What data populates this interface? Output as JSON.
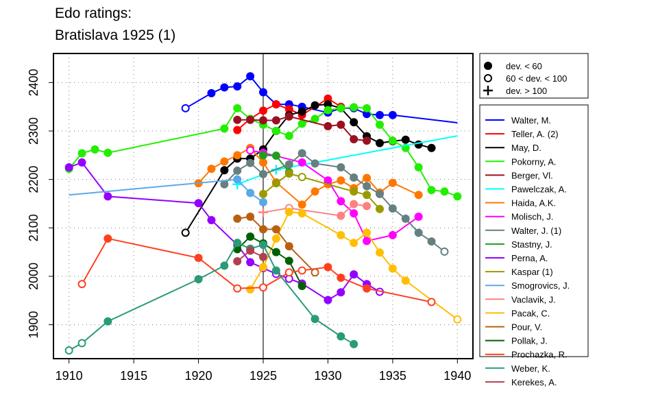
{
  "chart_data": {
    "type": "line",
    "title": [
      "Edo ratings:",
      "Bratislava 1925 (1)"
    ],
    "xlabel": "",
    "ylabel": "",
    "xlim": [
      1908.8,
      1941.2
    ],
    "ylim": [
      1830,
      2460
    ],
    "xticks": [
      1910,
      1915,
      1920,
      1925,
      1930,
      1935,
      1940
    ],
    "yticks": [
      1900,
      2000,
      2100,
      2200,
      2300,
      2400
    ],
    "reference_year": 1925,
    "grid": true,
    "marker_legend": [
      {
        "label": "dev. < 60",
        "marker": "filled"
      },
      {
        "label": "60 < dev. < 100",
        "marker": "open"
      },
      {
        "label": "dev. > 100",
        "marker": "plus"
      }
    ],
    "legend_placement": "right",
    "series": [
      {
        "name": "Walter, M.",
        "color": "#0000ff",
        "points": [
          [
            1919,
            2347,
            "o"
          ],
          [
            1921,
            2378,
            "f"
          ],
          [
            1922,
            2390,
            "f"
          ],
          [
            1923,
            2392,
            "f"
          ],
          [
            1924,
            2413,
            "f"
          ],
          [
            1925,
            2380,
            "f"
          ],
          [
            1926,
            2355,
            "f"
          ],
          [
            1927,
            2355,
            "f"
          ],
          [
            1928,
            2350,
            "f"
          ],
          [
            1930,
            2338,
            "f"
          ],
          [
            1931,
            2347,
            "f"
          ],
          [
            1932,
            2347,
            "f"
          ],
          [
            1933,
            2335,
            "f"
          ],
          [
            1934,
            2333,
            "f"
          ],
          [
            1935,
            2333,
            "f"
          ],
          [
            1940,
            2317,
            "n"
          ]
        ]
      },
      {
        "name": "Teller, A. (2)",
        "color": "#ff0000",
        "points": [
          [
            1923,
            2302,
            "f"
          ],
          [
            1924,
            2325,
            "f"
          ],
          [
            1925,
            2342,
            "f"
          ],
          [
            1926,
            2355,
            "f"
          ],
          [
            1927,
            2345,
            "f"
          ],
          [
            1928,
            2333,
            "f"
          ],
          [
            1930,
            2367,
            "f"
          ],
          [
            1931,
            2350,
            "f"
          ]
        ]
      },
      {
        "name": "May, D.",
        "color": "#000000",
        "points": [
          [
            1919,
            2090,
            "o"
          ],
          [
            1922,
            2219,
            "f"
          ],
          [
            1923,
            2243,
            "f"
          ],
          [
            1924,
            2243,
            "f"
          ],
          [
            1925,
            2262,
            "f"
          ],
          [
            1926,
            2300,
            "f"
          ],
          [
            1927,
            2333,
            "f"
          ],
          [
            1928,
            2340,
            "f"
          ],
          [
            1929,
            2353,
            "f"
          ],
          [
            1930,
            2355,
            "f"
          ],
          [
            1931,
            2347,
            "f"
          ],
          [
            1932,
            2318,
            "f"
          ],
          [
            1933,
            2289,
            "f"
          ],
          [
            1934,
            2275,
            "f"
          ],
          [
            1935,
            2279,
            "f"
          ],
          [
            1936,
            2282,
            "f"
          ],
          [
            1937,
            2272,
            "f"
          ],
          [
            1938,
            2265,
            "f"
          ]
        ]
      },
      {
        "name": "Pokorny, A.",
        "color": "#22ee00",
        "points": [
          [
            1910,
            2222,
            "f"
          ],
          [
            1911,
            2254,
            "f"
          ],
          [
            1912,
            2262,
            "f"
          ],
          [
            1913,
            2255,
            "f"
          ],
          [
            1922,
            2305,
            "f"
          ],
          [
            1923,
            2347,
            "f"
          ],
          [
            1924,
            2325,
            "f"
          ],
          [
            1925,
            2313,
            "f"
          ],
          [
            1926,
            2300,
            "f"
          ],
          [
            1927,
            2290,
            "f"
          ],
          [
            1928,
            2315,
            "f"
          ],
          [
            1929,
            2325,
            "f"
          ],
          [
            1930,
            2343,
            "f"
          ],
          [
            1931,
            2347,
            "f"
          ],
          [
            1932,
            2349,
            "f"
          ],
          [
            1933,
            2347,
            "f"
          ],
          [
            1934,
            2313,
            "f"
          ],
          [
            1935,
            2280,
            "f"
          ],
          [
            1936,
            2265,
            "f"
          ],
          [
            1937,
            2225,
            "f"
          ],
          [
            1938,
            2178,
            "f"
          ],
          [
            1939,
            2175,
            "f"
          ],
          [
            1940,
            2165,
            "f"
          ]
        ]
      },
      {
        "name": "Berger, Vl.",
        "color": "#9b1020",
        "points": [
          [
            1923,
            2323,
            "f"
          ],
          [
            1924,
            2323,
            "f"
          ],
          [
            1925,
            2322,
            "f"
          ],
          [
            1926,
            2322,
            "f"
          ],
          [
            1927,
            2330,
            "f"
          ],
          [
            1930,
            2310,
            "f"
          ],
          [
            1931,
            2313,
            "f"
          ],
          [
            1932,
            2283,
            "f"
          ],
          [
            1933,
            2280,
            "f"
          ]
        ]
      },
      {
        "name": "Pawelczak, A.",
        "color": "#00ffff",
        "points": [
          [
            1923,
            2190,
            "+"
          ],
          [
            1926,
            2220,
            "+"
          ],
          [
            1940,
            2290,
            "n"
          ]
        ]
      },
      {
        "name": "Haida, A.K.",
        "color": "#ff7700",
        "points": [
          [
            1920,
            2192,
            "f"
          ],
          [
            1921,
            2222,
            "f"
          ],
          [
            1922,
            2237,
            "f"
          ],
          [
            1923,
            2250,
            "f"
          ],
          [
            1924,
            2265,
            "f"
          ],
          [
            1925,
            2235,
            "f"
          ],
          [
            1926,
            2194,
            "f"
          ],
          [
            1928,
            2148,
            "f"
          ],
          [
            1929,
            2175,
            "f"
          ],
          [
            1930,
            2190,
            "f"
          ],
          [
            1931,
            2198,
            "f"
          ],
          [
            1932,
            2182,
            "f"
          ],
          [
            1933,
            2203,
            "f"
          ],
          [
            1934,
            2173,
            "f"
          ],
          [
            1935,
            2193,
            "f"
          ],
          [
            1937,
            2168,
            "f"
          ]
        ]
      },
      {
        "name": "Molisch, J.",
        "color": "#ff00ff",
        "points": [
          [
            1924,
            2260,
            "o"
          ],
          [
            1925,
            2255,
            "f"
          ],
          [
            1928,
            2235,
            "f"
          ],
          [
            1930,
            2198,
            "f"
          ],
          [
            1931,
            2155,
            "f"
          ],
          [
            1932,
            2130,
            "f"
          ],
          [
            1933,
            2073,
            "f"
          ],
          [
            1935,
            2085,
            "f"
          ],
          [
            1937,
            2123,
            "f"
          ]
        ]
      },
      {
        "name": "Walter, J. (1)",
        "color": "#668080",
        "points": [
          [
            1922,
            2190,
            "f"
          ],
          [
            1923,
            2218,
            "f"
          ],
          [
            1924,
            2234,
            "f"
          ],
          [
            1925,
            2211,
            "f"
          ],
          [
            1927,
            2231,
            "f"
          ],
          [
            1928,
            2254,
            "f"
          ],
          [
            1929,
            2233,
            "f"
          ],
          [
            1931,
            2225,
            "f"
          ],
          [
            1932,
            2204,
            "f"
          ],
          [
            1933,
            2186,
            "f"
          ],
          [
            1934,
            2170,
            "f"
          ],
          [
            1935,
            2140,
            "f"
          ],
          [
            1936,
            2119,
            "f"
          ],
          [
            1937,
            2090,
            "f"
          ],
          [
            1938,
            2072,
            "f"
          ],
          [
            1939,
            2051,
            "o"
          ]
        ]
      },
      {
        "name": "Stastny, J.",
        "color": "#1ea01e",
        "points": [
          [
            1925,
            2250,
            "f"
          ],
          [
            1926,
            2249,
            "f"
          ],
          [
            1927,
            2215,
            "f"
          ]
        ]
      },
      {
        "name": "Perna, A.",
        "color": "#9400ff",
        "points": [
          [
            1910,
            2225,
            "f"
          ],
          [
            1911,
            2235,
            "f"
          ],
          [
            1913,
            2165,
            "f"
          ],
          [
            1920,
            2151,
            "f"
          ],
          [
            1921,
            2116,
            "f"
          ],
          [
            1923,
            2065,
            "f"
          ],
          [
            1924,
            2029,
            "f"
          ],
          [
            1925,
            2017,
            "f"
          ],
          [
            1926,
            2005,
            "o"
          ],
          [
            1927,
            1995,
            "o"
          ],
          [
            1928,
            1985,
            "f"
          ],
          [
            1930,
            1951,
            "f"
          ],
          [
            1931,
            1967,
            "f"
          ],
          [
            1932,
            2004,
            "f"
          ],
          [
            1933,
            1984,
            "f"
          ],
          [
            1934,
            1968,
            "o"
          ]
        ]
      },
      {
        "name": "Kaspar (1)",
        "color": "#9a9a00",
        "points": [
          [
            1925,
            2170,
            "f"
          ],
          [
            1926,
            2192,
            "f"
          ],
          [
            1927,
            2212,
            "f"
          ],
          [
            1928,
            2205,
            "o"
          ],
          [
            1932,
            2175,
            "f"
          ],
          [
            1933,
            2168,
            "f"
          ],
          [
            1934,
            2139,
            "f"
          ]
        ]
      },
      {
        "name": "Smogrovics, J.",
        "color": "#5aa8e8",
        "points": [
          [
            1910,
            2168,
            "n"
          ],
          [
            1923,
            2200,
            "f"
          ],
          [
            1924,
            2172,
            "f"
          ],
          [
            1925,
            2153,
            "f"
          ]
        ]
      },
      {
        "name": "Vaclavik, J.",
        "color": "#ff8080",
        "points": [
          [
            1925,
            2132,
            "+"
          ],
          [
            1927,
            2141,
            "o"
          ],
          [
            1931,
            2125,
            "f"
          ],
          [
            1932,
            2149,
            "f"
          ],
          [
            1933,
            2145,
            "f"
          ]
        ]
      },
      {
        "name": "Pacak, C.",
        "color": "#ffbf00",
        "points": [
          [
            1924,
            1973,
            "f"
          ],
          [
            1925,
            2019,
            "f"
          ],
          [
            1926,
            2078,
            "f"
          ],
          [
            1927,
            2133,
            "f"
          ],
          [
            1928,
            2130,
            "f"
          ],
          [
            1931,
            2085,
            "f"
          ],
          [
            1932,
            2069,
            "f"
          ],
          [
            1933,
            2090,
            "f"
          ],
          [
            1934,
            2049,
            "f"
          ],
          [
            1935,
            2016,
            "f"
          ],
          [
            1936,
            1991,
            "f"
          ],
          [
            1940,
            1911,
            "o"
          ]
        ]
      },
      {
        "name": "Pour, V.",
        "color": "#b86010",
        "points": [
          [
            1923,
            2119,
            "f"
          ],
          [
            1924,
            2123,
            "f"
          ],
          [
            1925,
            2097,
            "f"
          ],
          [
            1926,
            2097,
            "f"
          ],
          [
            1927,
            2062,
            "f"
          ],
          [
            1929,
            2008,
            "o"
          ]
        ]
      },
      {
        "name": "Pollak, J.",
        "color": "#006000",
        "points": [
          [
            1923,
            2056,
            "f"
          ],
          [
            1924,
            2082,
            "f"
          ],
          [
            1925,
            2068,
            "f"
          ],
          [
            1926,
            2050,
            "f"
          ],
          [
            1927,
            2032,
            "f"
          ],
          [
            1928,
            1980,
            "f"
          ]
        ]
      },
      {
        "name": "Prochazka, R.",
        "color": "#ff4020",
        "points": [
          [
            1911,
            1984,
            "o"
          ],
          [
            1913,
            2078,
            "f"
          ],
          [
            1920,
            2038,
            "f"
          ],
          [
            1923,
            1975,
            "o"
          ],
          [
            1925,
            1977,
            "o"
          ],
          [
            1927,
            2008,
            "o"
          ],
          [
            1928,
            2012,
            "o"
          ],
          [
            1930,
            2019,
            "f"
          ],
          [
            1931,
            1997,
            "f"
          ],
          [
            1933,
            1975,
            "f"
          ],
          [
            1938,
            1947,
            "o"
          ]
        ]
      },
      {
        "name": "Weber, K.",
        "color": "#2a9a78",
        "points": [
          [
            1910,
            1847,
            "o"
          ],
          [
            1911,
            1862,
            "o"
          ],
          [
            1913,
            1907,
            "f"
          ],
          [
            1920,
            1994,
            "f"
          ],
          [
            1922,
            2022,
            "f"
          ],
          [
            1923,
            2069,
            "f"
          ],
          [
            1924,
            2057,
            "f"
          ],
          [
            1925,
            2065,
            "f"
          ],
          [
            1926,
            2012,
            "f"
          ],
          [
            1929,
            1912,
            "f"
          ],
          [
            1931,
            1876,
            "f"
          ],
          [
            1932,
            1860,
            "f"
          ]
        ]
      },
      {
        "name": "Kerekes, A.",
        "color": "#b04050",
        "points": [
          [
            1923,
            2031,
            "f"
          ],
          [
            1924,
            2053,
            "f"
          ],
          [
            1925,
            2040,
            "f"
          ]
        ]
      }
    ]
  }
}
